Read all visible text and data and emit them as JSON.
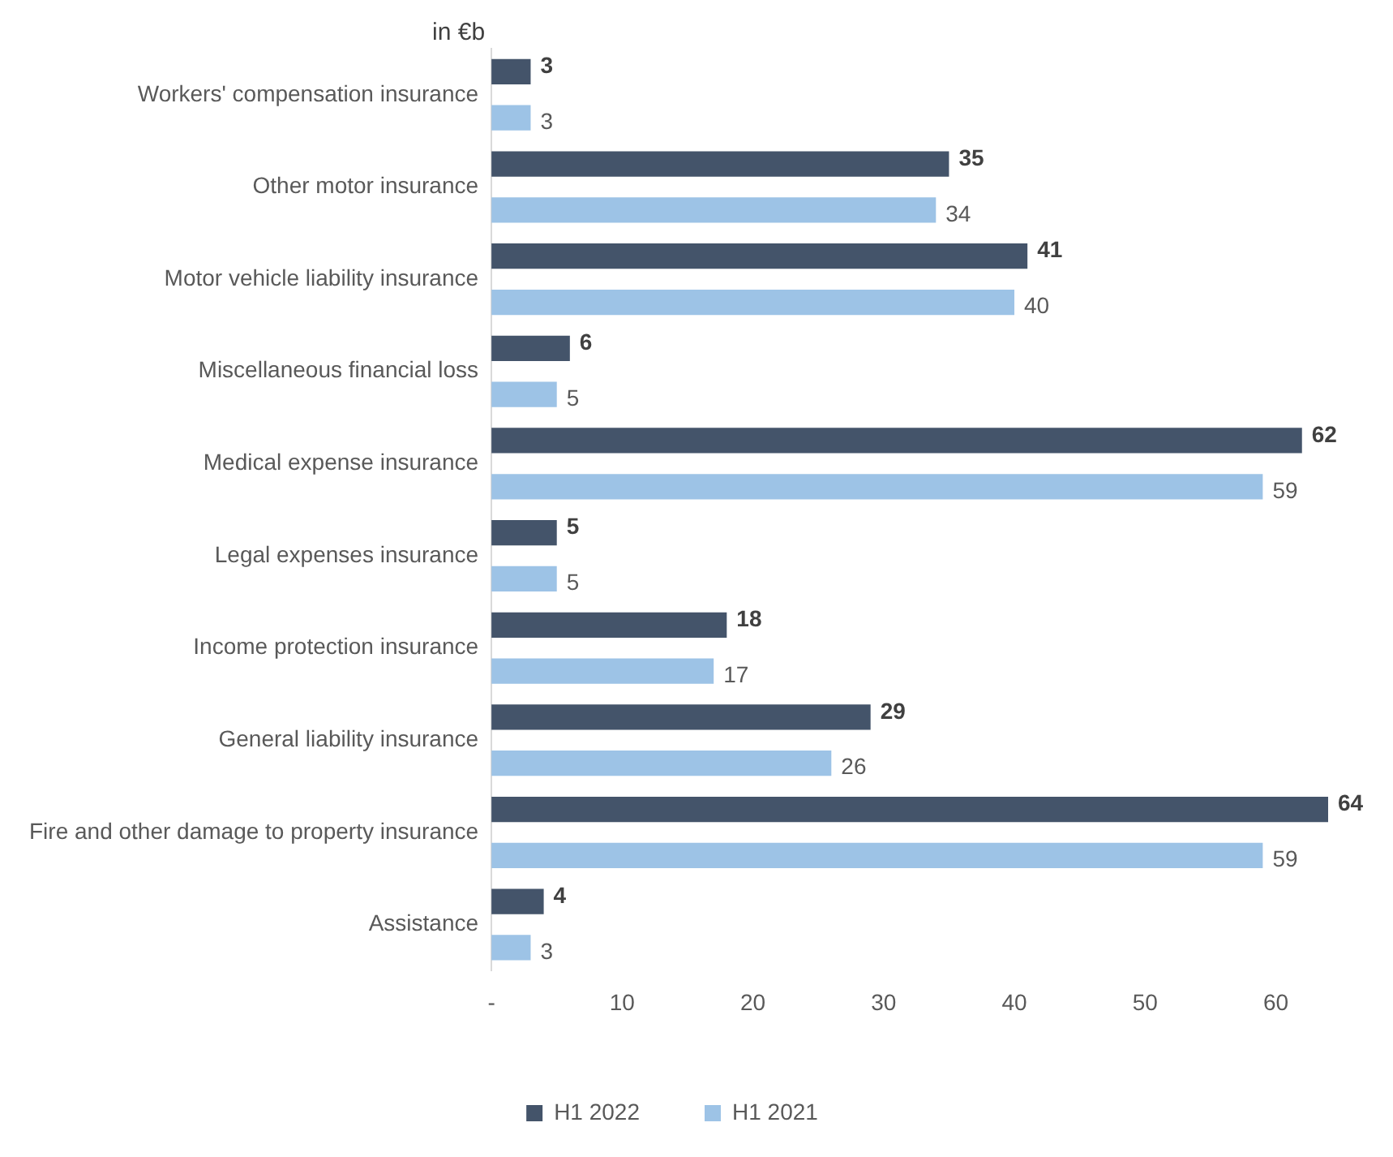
{
  "chart_data": {
    "type": "bar",
    "orientation": "horizontal",
    "annotations": [
      "in €b"
    ],
    "categories": [
      "Workers' compensation insurance",
      "Other motor insurance",
      "Motor vehicle liability insurance",
      "Miscellaneous financial loss",
      "Medical expense insurance",
      "Legal expenses insurance",
      "Income protection insurance",
      "General liability insurance",
      "Fire and other damage to property insurance",
      "Assistance"
    ],
    "series": [
      {
        "name": "H1 2022",
        "color": "#44546a",
        "values": [
          3,
          35,
          41,
          6,
          62,
          5,
          18,
          29,
          64,
          4
        ]
      },
      {
        "name": "H1 2021",
        "color": "#9dc3e6",
        "values": [
          3,
          34,
          40,
          5,
          59,
          5,
          17,
          26,
          59,
          3
        ]
      }
    ],
    "xlim": [
      0,
      64
    ],
    "xticks": [
      {
        "value": 0,
        "label": "-"
      },
      10,
      20,
      30,
      40,
      50,
      60
    ],
    "data_labels": true,
    "grid": false,
    "legend": "bottom"
  }
}
